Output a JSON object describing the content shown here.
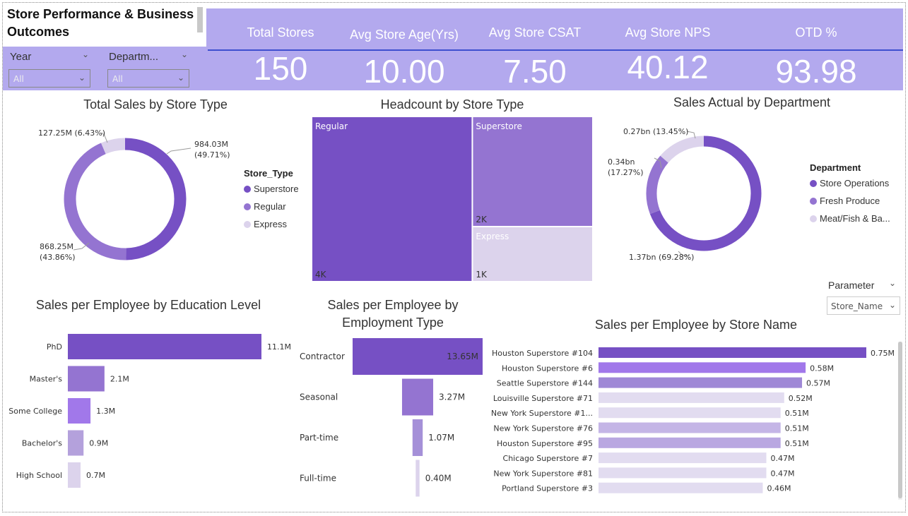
{
  "header": {
    "title": "Store Performance & Business Outcomes",
    "title_line1": "Store Performance & Business",
    "title_line2": "Outcomes"
  },
  "slicers": [
    {
      "name": "Year",
      "value": "All"
    },
    {
      "name": "Departm...",
      "value": "All"
    }
  ],
  "kpis": [
    {
      "label": "Total Stores",
      "value": "150"
    },
    {
      "label": "Avg Store Age(Yrs)",
      "value": "10.00"
    },
    {
      "label": "Avg Store CSAT",
      "value": "7.50"
    },
    {
      "label": "Avg Store NPS",
      "value": "40.12"
    },
    {
      "label": "OTD %",
      "value": "93.98"
    }
  ],
  "colors": {
    "kpi_band": "#b3a9ee",
    "primary": "#7650c4",
    "secondary": "#9474d1",
    "light": "#dcd3ec",
    "bright": "#a178ea",
    "pale": "#e7e2f3"
  },
  "icons": {
    "dropdown": "chevron-down-icon"
  },
  "chart_data": [
    {
      "type": "pie",
      "title": "Total Sales by Store Type",
      "legend_title": "Store_Type",
      "legend_position": "right",
      "slices": [
        {
          "name": "Superstore",
          "value": 984.03,
          "label_value": "984.03M",
          "label_pct": "(49.71%)",
          "color": "#7650c4"
        },
        {
          "name": "Regular",
          "value": 868.25,
          "label_value": "868.25M",
          "label_pct": "(43.86%)",
          "color": "#9474d1"
        },
        {
          "name": "Express",
          "value": 127.25,
          "label_value": "127.25M",
          "label_pct": "(6.43%)",
          "color": "#dcd3ec"
        }
      ]
    },
    {
      "type": "treemap",
      "title": "Headcount by Store Type",
      "items": [
        {
          "name": "Regular",
          "value": 4000,
          "label": "4K",
          "color": "#7650c4"
        },
        {
          "name": "Superstore",
          "value": 2000,
          "label": "2K",
          "color": "#9474d1"
        },
        {
          "name": "Express",
          "value": 1000,
          "label": "1K",
          "color": "#dcd3ec"
        }
      ]
    },
    {
      "type": "pie",
      "title": "Sales Actual by Department",
      "legend_title": "Department",
      "legend_position": "right",
      "slices": [
        {
          "name": "Store Operations",
          "value": 1.37,
          "label_value": "1.37bn",
          "label_pct": "(69.28%)",
          "color": "#7650c4"
        },
        {
          "name": "Fresh Produce",
          "value": 0.34,
          "label_value": "0.34bn",
          "label_pct": "(17.27%)",
          "color": "#9474d1"
        },
        {
          "name": "Meat/Fish & Ba...",
          "value": 0.27,
          "label_value": "0.27bn",
          "label_pct": "(13.45%)",
          "color": "#dcd3ec"
        }
      ]
    },
    {
      "type": "bar",
      "orientation": "horizontal",
      "title": "Sales per Employee by Education Level",
      "categories": [
        "PhD",
        "Master's",
        "Some College",
        "Bachelor's",
        "High School"
      ],
      "values": [
        11.1,
        2.1,
        1.3,
        0.9,
        0.7
      ],
      "labels": [
        "11.1M",
        "2.1M",
        "1.3M",
        "0.9M",
        "0.7M"
      ],
      "colors": [
        "#7650c4",
        "#9474d1",
        "#a178ea",
        "#b4a1dc",
        "#dcd3ec"
      ]
    },
    {
      "type": "funnel",
      "title": "Sales per Employee by Employment Type",
      "title_line1": "Sales per Employee by",
      "title_line2": "Employment Type",
      "categories": [
        "Contractor",
        "Seasonal",
        "Part-time",
        "Full-time"
      ],
      "values": [
        13.65,
        3.27,
        1.07,
        0.4
      ],
      "labels": [
        "13.65M",
        "3.27M",
        "1.07M",
        "0.40M"
      ],
      "colors": [
        "#7650c4",
        "#9474d1",
        "#a590d8",
        "#dcd3ec"
      ]
    },
    {
      "type": "bar",
      "orientation": "horizontal",
      "title": "Sales per Employee by Store Name",
      "parameter": {
        "label": "Parameter",
        "value": "Store_Name"
      },
      "categories": [
        "Houston Superstore #104",
        "Houston Superstore #6",
        "Seattle Superstore #144",
        "Louisville Superstore #71",
        "New York Superstore #1...",
        "New York Superstore #76",
        "Houston Superstore #95",
        "Chicago Superstore #7",
        "New York Superstore #81",
        "Portland Superstore #3"
      ],
      "values": [
        0.75,
        0.58,
        0.57,
        0.52,
        0.51,
        0.51,
        0.51,
        0.47,
        0.47,
        0.46
      ],
      "labels": [
        "0.75M",
        "0.58M",
        "0.57M",
        "0.52M",
        "0.51M",
        "0.51M",
        "0.51M",
        "0.47M",
        "0.47M",
        "0.46M"
      ],
      "colors": [
        "#7650c4",
        "#a178ea",
        "#9f88d6",
        "#e2dcf0",
        "#e2dcf0",
        "#c4b5e6",
        "#b9a7e1",
        "#e2dcf0",
        "#e2dcf0",
        "#e2dcf0"
      ]
    }
  ]
}
